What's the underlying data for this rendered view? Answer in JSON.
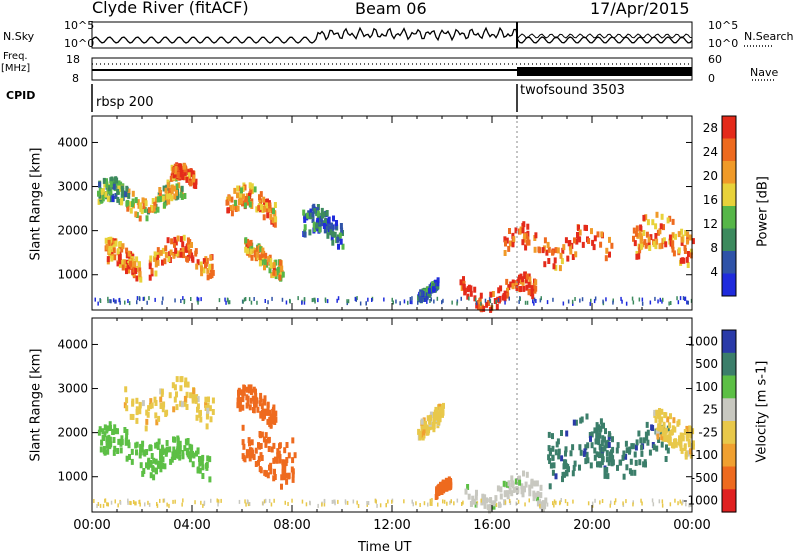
{
  "header": {
    "radar": "Clyde River (fitACF)",
    "beam": "Beam 06",
    "date": "17/Apr/2015"
  },
  "top_panel": {
    "left_label": "N.Sky",
    "right_label": "N.Search",
    "left_ticks": [
      "10^5",
      "10^0"
    ],
    "right_ticks": [
      "10^5",
      "10^0"
    ]
  },
  "freq_panel": {
    "left_label_1": "Freq.",
    "left_label_2": "[MHz]",
    "left_ticks": [
      "18",
      "8"
    ],
    "right_label": "Nave",
    "right_ticks": [
      "60",
      "0"
    ]
  },
  "cpid_panel": {
    "label": "CPID",
    "programs": [
      "rbsp 200",
      "twofsound 3503"
    ]
  },
  "colors": {
    "power_scale": [
      "#1f2bdc",
      "#2f53a8",
      "#3c8a5e",
      "#56b648",
      "#e8d23a",
      "#f09a28",
      "#ee6a1e",
      "#e42a1a"
    ],
    "velocity_scale": [
      "#2a3aa8",
      "#3b7e6a",
      "#5cbf45",
      "#c8c8c0",
      "#e8c84a",
      "#f0a030",
      "#ee6a1e",
      "#e02020"
    ],
    "accent": "#000000"
  },
  "chart_data": [
    {
      "type": "heatmap",
      "name": "Power",
      "xlabel": "",
      "ylabel": "Slant Range [km]",
      "x_ticks": [
        "00:00",
        "04:00",
        "08:00",
        "12:00",
        "16:00",
        "20:00",
        "00:00"
      ],
      "y_ticks": [
        1000,
        2000,
        3000,
        4000
      ],
      "ylim": [
        200,
        4600
      ],
      "colorbar": {
        "label": "Power [dB]",
        "ticks": [
          4,
          8,
          12,
          16,
          20,
          24,
          28
        ],
        "range": [
          0,
          30
        ]
      },
      "blobs": [
        {
          "t": 0.8,
          "r": 2700,
          "dt": 0.6,
          "dr": 250,
          "level": 0.35
        },
        {
          "t": 1.2,
          "r": 1300,
          "dt": 0.7,
          "dr": 250,
          "level": 0.75
        },
        {
          "t": 2.5,
          "r": 2750,
          "dt": 1.2,
          "dr": 250,
          "level": 0.55
        },
        {
          "t": 3.5,
          "r": 1400,
          "dt": 1.3,
          "dr": 250,
          "level": 0.8
        },
        {
          "t": 3.6,
          "r": 3100,
          "dt": 0.5,
          "dr": 150,
          "level": 0.85
        },
        {
          "t": 6.3,
          "r": 2550,
          "dt": 1.0,
          "dr": 250,
          "level": 0.7
        },
        {
          "t": 6.8,
          "r": 1350,
          "dt": 0.8,
          "dr": 200,
          "level": 0.65
        },
        {
          "t": 9.2,
          "r": 2000,
          "dt": 0.8,
          "dr": 300,
          "level": 0.2
        },
        {
          "t": 13.4,
          "r": 750,
          "dt": 0.4,
          "dr": 100,
          "level": 0.2
        },
        {
          "t": 16.2,
          "r": 600,
          "dt": 1.5,
          "dr": 200,
          "level": 0.9
        },
        {
          "t": 18.6,
          "r": 1650,
          "dt": 2.2,
          "dr": 300,
          "level": 0.85
        },
        {
          "t": 22.8,
          "r": 1800,
          "dt": 1.2,
          "dr": 400,
          "level": 0.75
        }
      ]
    },
    {
      "type": "heatmap",
      "name": "Velocity",
      "xlabel": "Time UT",
      "ylabel": "Slant Range [km]",
      "x_ticks": [
        "00:00",
        "04:00",
        "08:00",
        "12:00",
        "16:00",
        "20:00",
        "00:00"
      ],
      "y_ticks": [
        1000,
        2000,
        3000,
        4000
      ],
      "ylim": [
        200,
        4600
      ],
      "colorbar": {
        "label": "Velocity [m s-1]",
        "ticks": [
          1000,
          500,
          100,
          25,
          -25,
          -100,
          -500,
          -1000
        ]
      },
      "blobs": [
        {
          "t": 1.5,
          "r": 1650,
          "dt": 1.3,
          "dr": 350,
          "value": 250
        },
        {
          "t": 3.0,
          "r": 2650,
          "dt": 1.8,
          "dr": 350,
          "value": 0
        },
        {
          "t": 3.5,
          "r": 1400,
          "dt": 1.2,
          "dr": 250,
          "value": 250
        },
        {
          "t": 7.0,
          "r": 1500,
          "dt": 1.1,
          "dr": 500,
          "value": -300
        },
        {
          "t": 6.5,
          "r": 2550,
          "dt": 0.8,
          "dr": 250,
          "value": -300
        },
        {
          "t": 13.5,
          "r": 2300,
          "dt": 0.5,
          "dr": 200,
          "value": 0
        },
        {
          "t": 14.0,
          "r": 600,
          "dt": 0.3,
          "dr": 100,
          "value": -300
        },
        {
          "t": 16.5,
          "r": 600,
          "dt": 1.6,
          "dr": 250,
          "value": 80
        },
        {
          "t": 19.4,
          "r": 1600,
          "dt": 1.2,
          "dr": 600,
          "value": 800
        },
        {
          "t": 21.5,
          "r": 1600,
          "dt": 1.5,
          "dr": 450,
          "value": 800
        },
        {
          "t": 23.2,
          "r": 2000,
          "dt": 0.8,
          "dr": 350,
          "value": 0
        }
      ]
    }
  ]
}
